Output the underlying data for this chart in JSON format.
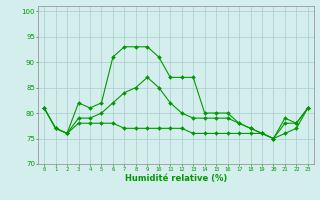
{
  "xlabel": "Humidité relative (%)",
  "xlim": [
    -0.5,
    23.5
  ],
  "ylim": [
    70,
    101
  ],
  "yticks": [
    70,
    75,
    80,
    85,
    90,
    95,
    100
  ],
  "xticks": [
    0,
    1,
    2,
    3,
    4,
    5,
    6,
    7,
    8,
    9,
    10,
    11,
    12,
    13,
    14,
    15,
    16,
    17,
    18,
    19,
    20,
    21,
    22,
    23
  ],
  "xtick_labels": [
    "0",
    "1",
    "2",
    "3",
    "4",
    "5",
    "6",
    "7",
    "8",
    "9",
    "10",
    "11",
    "12",
    "13",
    "14",
    "15",
    "16",
    "17",
    "18",
    "19",
    "20",
    "21",
    "22",
    "23"
  ],
  "line_color": "#009900",
  "bg_color": "#d4eeee",
  "grid_color": "#aacccc",
  "series_max": [
    81,
    77,
    76,
    82,
    81,
    82,
    91,
    93,
    93,
    93,
    91,
    87,
    87,
    87,
    80,
    80,
    80,
    78,
    77,
    76,
    75,
    79,
    78,
    81
  ],
  "series_mean": [
    81,
    77,
    76,
    79,
    79,
    80,
    82,
    84,
    85,
    87,
    85,
    82,
    80,
    79,
    79,
    79,
    79,
    78,
    77,
    76,
    75,
    78,
    78,
    81
  ],
  "series_min": [
    81,
    77,
    76,
    78,
    78,
    78,
    78,
    77,
    77,
    77,
    77,
    77,
    77,
    76,
    76,
    76,
    76,
    76,
    76,
    76,
    75,
    76,
    77,
    81
  ]
}
